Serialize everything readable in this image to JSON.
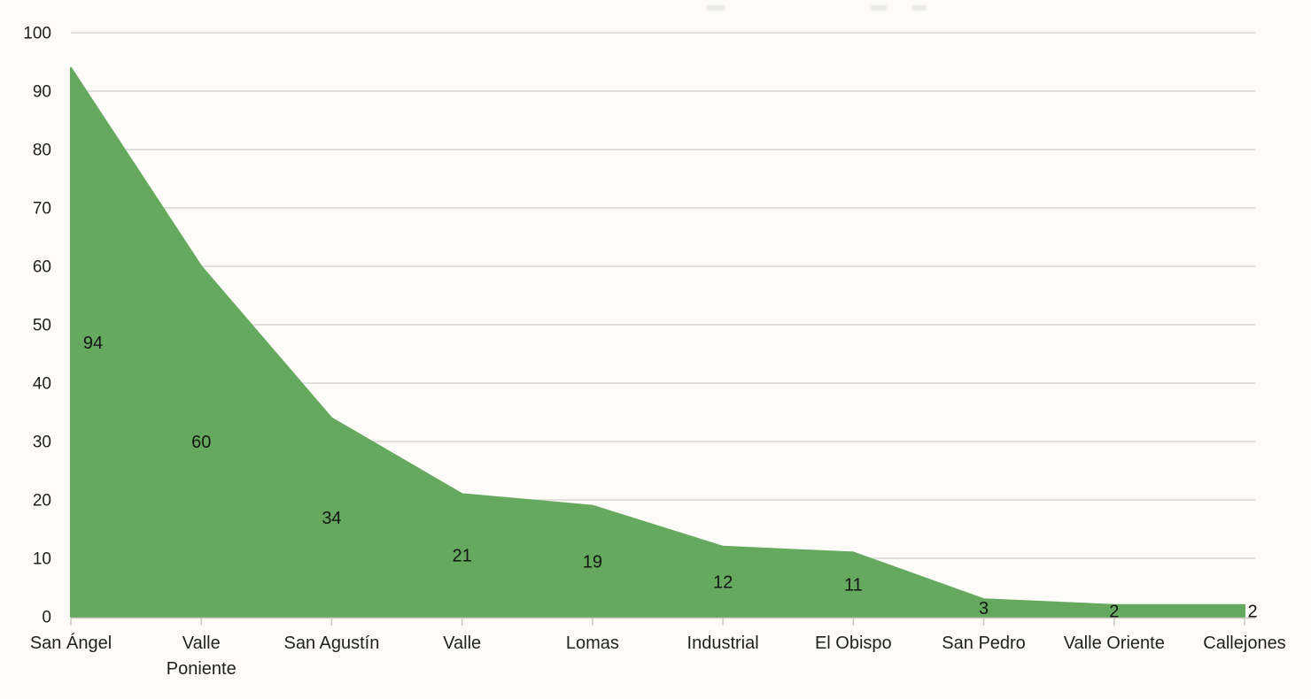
{
  "page": {
    "background_color": "#fdfcf8"
  },
  "chart_data": {
    "type": "area",
    "title": "",
    "xlabel": "",
    "ylabel": "",
    "categories": [
      "San Ángel",
      "Valle\nPoniente",
      "San Agustín",
      "Valle",
      "Lomas",
      "Industrial",
      "El Obispo",
      "San Pedro",
      "Valle Oriente",
      "Callejones"
    ],
    "values": [
      94,
      60,
      34,
      21,
      19,
      12,
      11,
      3,
      2,
      2
    ],
    "data_labels": [
      "94",
      "60",
      "34",
      "21",
      "19",
      "12",
      "11",
      "3",
      "2",
      "2"
    ],
    "ylim": [
      0,
      100
    ],
    "yticks": [
      0,
      10,
      20,
      30,
      40,
      50,
      60,
      70,
      80,
      90,
      100
    ],
    "grid": "horizontal",
    "legend": "none",
    "series_color": "#65a95f",
    "gridline_color": "#d8d7d2",
    "axis_color": "#c9c8c3",
    "label_color": "#1f1f1f"
  }
}
